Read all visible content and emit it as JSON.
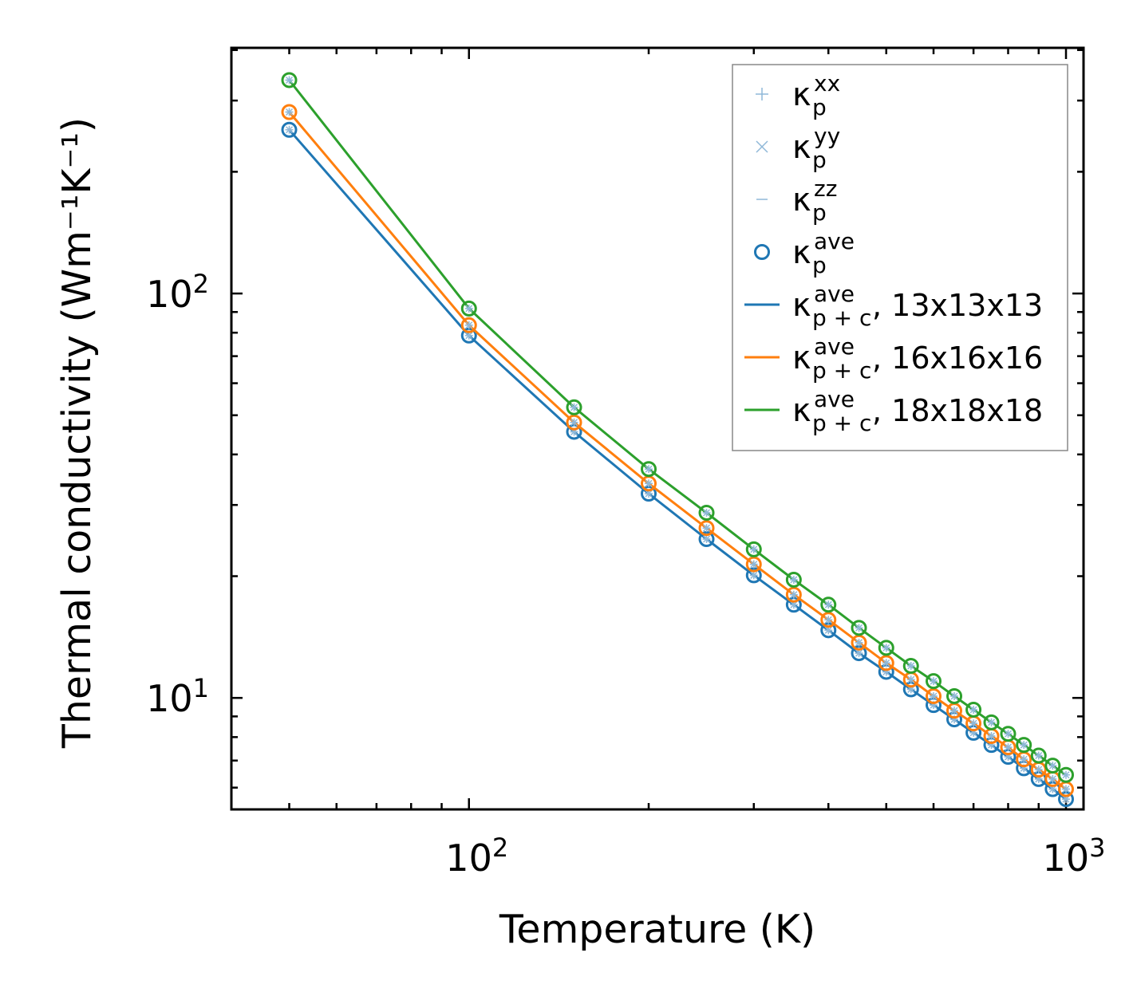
{
  "chart_data": {
    "type": "line",
    "title": "",
    "xlabel": "Temperature (K)",
    "ylabel": "Thermal conductivity (Wm⁻¹K⁻¹)",
    "xscale": "log",
    "yscale": "log",
    "xlim": [
      40,
      1070
    ],
    "ylim": [
      5.3,
      405
    ],
    "x_major_ticks": [
      {
        "value": 100,
        "base": "10",
        "exp": "2"
      },
      {
        "value": 1000,
        "base": "10",
        "exp": "3"
      }
    ],
    "y_major_ticks": [
      {
        "value": 10,
        "base": "10",
        "exp": "1"
      },
      {
        "value": 100,
        "base": "10",
        "exp": "2"
      }
    ],
    "legend_position": "top-right",
    "x": [
      50,
      100,
      150,
      200,
      250,
      300,
      350,
      400,
      450,
      500,
      550,
      600,
      650,
      700,
      750,
      800,
      850,
      900,
      950,
      1000
    ],
    "series": [
      {
        "name": "13x13x13",
        "color": "#1f77b4",
        "values": [
          254,
          78.7,
          45.5,
          32.0,
          24.7,
          20.1,
          17.0,
          14.7,
          12.9,
          11.6,
          10.5,
          9.6,
          8.85,
          8.2,
          7.65,
          7.15,
          6.7,
          6.3,
          5.95,
          5.62
        ],
        "p_xx": [
          254,
          78.7,
          45.5,
          32.0,
          24.7,
          20.1,
          17.0,
          14.7,
          12.9,
          11.6,
          10.5,
          9.6,
          8.85,
          8.2,
          7.65,
          7.15,
          6.7,
          6.3,
          5.95,
          5.62
        ],
        "p_yy": [
          254,
          78.7,
          45.5,
          32.0,
          24.7,
          20.1,
          17.0,
          14.7,
          12.9,
          11.6,
          10.5,
          9.6,
          8.85,
          8.2,
          7.65,
          7.15,
          6.7,
          6.3,
          5.95,
          5.62
        ],
        "p_zz": [
          254,
          78.7,
          45.5,
          32.0,
          24.7,
          20.1,
          17.0,
          14.7,
          12.9,
          11.6,
          10.5,
          9.6,
          8.85,
          8.2,
          7.65,
          7.15,
          6.7,
          6.3,
          5.95,
          5.62
        ]
      },
      {
        "name": "16x16x16",
        "color": "#ff7f0e",
        "values": [
          281,
          83.5,
          48.0,
          33.9,
          26.3,
          21.4,
          18.0,
          15.6,
          13.7,
          12.2,
          11.1,
          10.1,
          9.3,
          8.65,
          8.05,
          7.55,
          7.05,
          6.65,
          6.3,
          5.95
        ]
      },
      {
        "name": "18x18x18",
        "color": "#2ca02c",
        "values": [
          337,
          91.8,
          52.3,
          36.8,
          28.7,
          23.3,
          19.6,
          17.0,
          14.9,
          13.3,
          12.0,
          11.0,
          10.1,
          9.35,
          8.7,
          8.15,
          7.65,
          7.2,
          6.8,
          6.45
        ]
      }
    ],
    "legend": [
      {
        "label": "κ",
        "sup": "xx",
        "sub": "p",
        "suffix": "",
        "kind": "plus",
        "color": "#8fb8d8"
      },
      {
        "label": "κ",
        "sup": "yy",
        "sub": "p",
        "suffix": "",
        "kind": "cross",
        "color": "#8fb8d8"
      },
      {
        "label": "κ",
        "sup": "zz",
        "sub": "p",
        "suffix": "",
        "kind": "dash",
        "color": "#8fb8d8"
      },
      {
        "label": "κ",
        "sup": "ave",
        "sub": "p",
        "suffix": "",
        "kind": "circle",
        "color": "#1f77b4"
      },
      {
        "label": "κ",
        "sup": "ave",
        "sub": "p + c",
        "suffix": ", 13x13x13",
        "kind": "line",
        "color": "#1f77b4"
      },
      {
        "label": "κ",
        "sup": "ave",
        "sub": "p + c",
        "suffix": ", 16x16x16",
        "kind": "line",
        "color": "#ff7f0e"
      },
      {
        "label": "κ",
        "sup": "ave",
        "sub": "p + c",
        "suffix": ", 18x18x18",
        "kind": "line",
        "color": "#2ca02c"
      }
    ]
  }
}
